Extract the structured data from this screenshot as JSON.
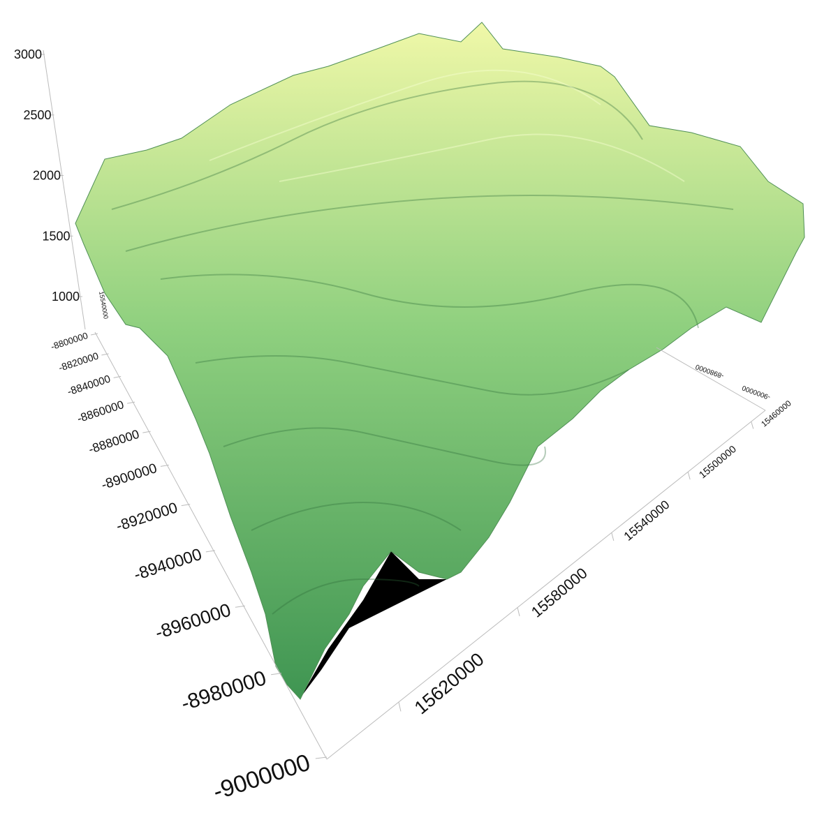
{
  "chart_data": {
    "type": "surface3d",
    "zlim": [
      1000,
      3000
    ],
    "zticks": [
      1000,
      1500,
      2000,
      2500,
      3000
    ],
    "ylim": [
      -8800000,
      -9000000
    ],
    "yticks": [
      -8800000,
      -8820000,
      -8840000,
      -8860000,
      -8880000,
      -8900000,
      -8920000,
      -8940000,
      -8960000,
      -8980000,
      -9000000
    ],
    "xlim": [
      15450000,
      15640000
    ],
    "xticks": [
      15460000,
      15500000,
      15540000,
      15580000,
      15620000
    ],
    "colors": {
      "low": "#3f9552",
      "mid": "#8fd07f",
      "high": "#f0f8a8"
    }
  }
}
